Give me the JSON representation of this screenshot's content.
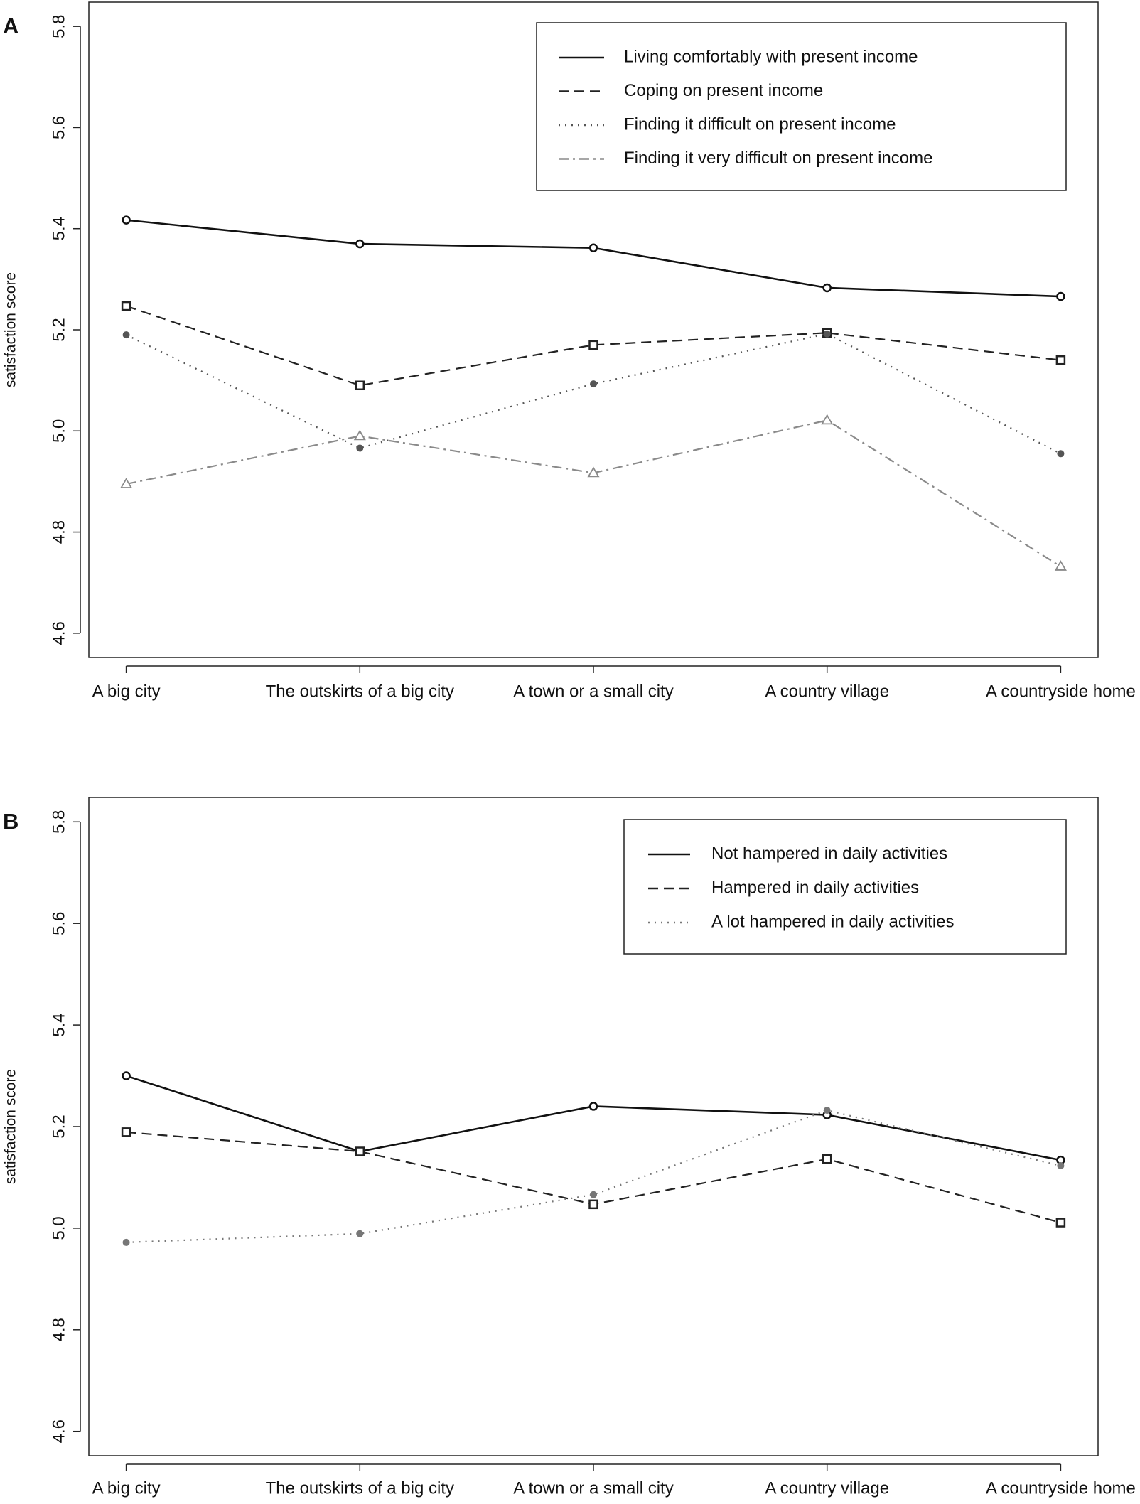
{
  "chart_data": [
    {
      "type": "line",
      "panel_label": "A",
      "ylabel": "satisfaction score",
      "categories": [
        "A big city",
        "The outskirts of a big city",
        "A town or a small city",
        "A country village",
        "A countryside home"
      ],
      "ylim": [
        4.6,
        5.8
      ],
      "yticks": [
        4.6,
        4.8,
        {
          "value": 5,
          "label": "5.0"
        },
        5.2,
        5.4,
        5.6,
        5.8
      ],
      "legend": "top-right",
      "series": [
        {
          "name": "Living comfortably with present income",
          "color": "#111111",
          "linestyle": "solid",
          "marker": "circle",
          "values": [
            5.417,
            5.37,
            5.362,
            5.283,
            5.266
          ]
        },
        {
          "name": "Coping on present income",
          "color": "#222222",
          "linestyle": "dashed",
          "marker": "square",
          "values": [
            5.247,
            5.09,
            5.17,
            5.194,
            5.14
          ]
        },
        {
          "name": "Finding it difficult on present income",
          "color": "#555555",
          "linestyle": "dotted",
          "marker": "dot",
          "values": [
            5.19,
            4.966,
            5.093,
            5.192,
            4.955
          ]
        },
        {
          "name": "Finding it very difficult on present income",
          "color": "#8a8a8a",
          "linestyle": "dashdot",
          "marker": "triangle",
          "values": [
            4.895,
            4.99,
            4.917,
            5.021,
            4.732
          ]
        }
      ]
    },
    {
      "type": "line",
      "panel_label": "B",
      "ylabel": "satisfaction score",
      "categories": [
        "A big city",
        "The outskirts of a big city",
        "A town or a small city",
        "A country village",
        "A countryside home"
      ],
      "ylim": [
        4.6,
        5.8
      ],
      "yticks": [
        4.6,
        4.8,
        {
          "value": 5,
          "label": "5.0"
        },
        5.2,
        5.4,
        5.6,
        5.8
      ],
      "legend": "top-right",
      "series": [
        {
          "name": "Not hampered in daily activities",
          "color": "#111111",
          "linestyle": "solid",
          "marker": "circle",
          "values": [
            5.3,
            5.151,
            5.24,
            5.223,
            5.134
          ]
        },
        {
          "name": "Hampered in daily activities",
          "color": "#222222",
          "linestyle": "dashed",
          "marker": "square",
          "values": [
            5.189,
            5.151,
            5.047,
            5.136,
            5.011
          ]
        },
        {
          "name": "A lot hampered in daily activities",
          "color": "#777777",
          "linestyle": "dotted",
          "marker": "dot",
          "values": [
            4.972,
            4.989,
            5.066,
            5.232,
            5.123
          ]
        }
      ]
    }
  ]
}
